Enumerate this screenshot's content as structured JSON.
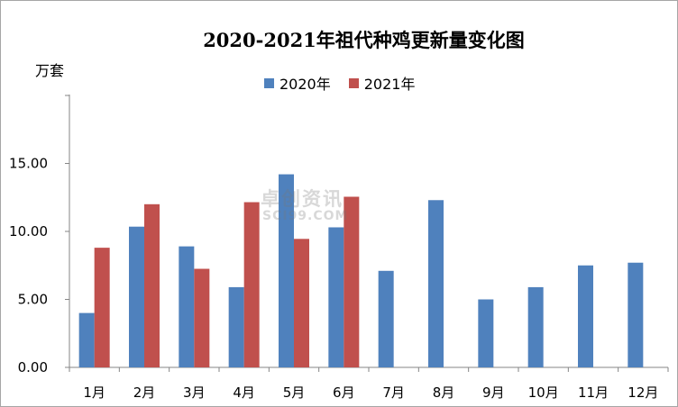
{
  "chart_data": {
    "type": "bar",
    "title": "2020-2021年祖代种鸡更新量变化图",
    "ylabel": "万套",
    "xlabel": "",
    "categories": [
      "1月",
      "2月",
      "3月",
      "4月",
      "5月",
      "6月",
      "7月",
      "8月",
      "9月",
      "10月",
      "11月",
      "12月"
    ],
    "series": [
      {
        "name": "2020年",
        "color": "#4f81bd",
        "values": [
          4.0,
          10.35,
          8.9,
          5.9,
          14.2,
          10.3,
          7.1,
          12.3,
          5.0,
          5.9,
          7.5,
          7.7
        ]
      },
      {
        "name": "2021年",
        "color": "#c0504d",
        "values": [
          8.8,
          12.0,
          7.25,
          12.15,
          9.45,
          12.55,
          null,
          null,
          null,
          null,
          null,
          null
        ]
      }
    ],
    "ylim": [
      0,
      20
    ],
    "yticks": [
      "0.00",
      "5.00",
      "10.00",
      "15.00"
    ],
    "grid": false,
    "legend": "top"
  },
  "watermark": {
    "main": "卓创资讯",
    "sub": "SCI99.COM"
  }
}
